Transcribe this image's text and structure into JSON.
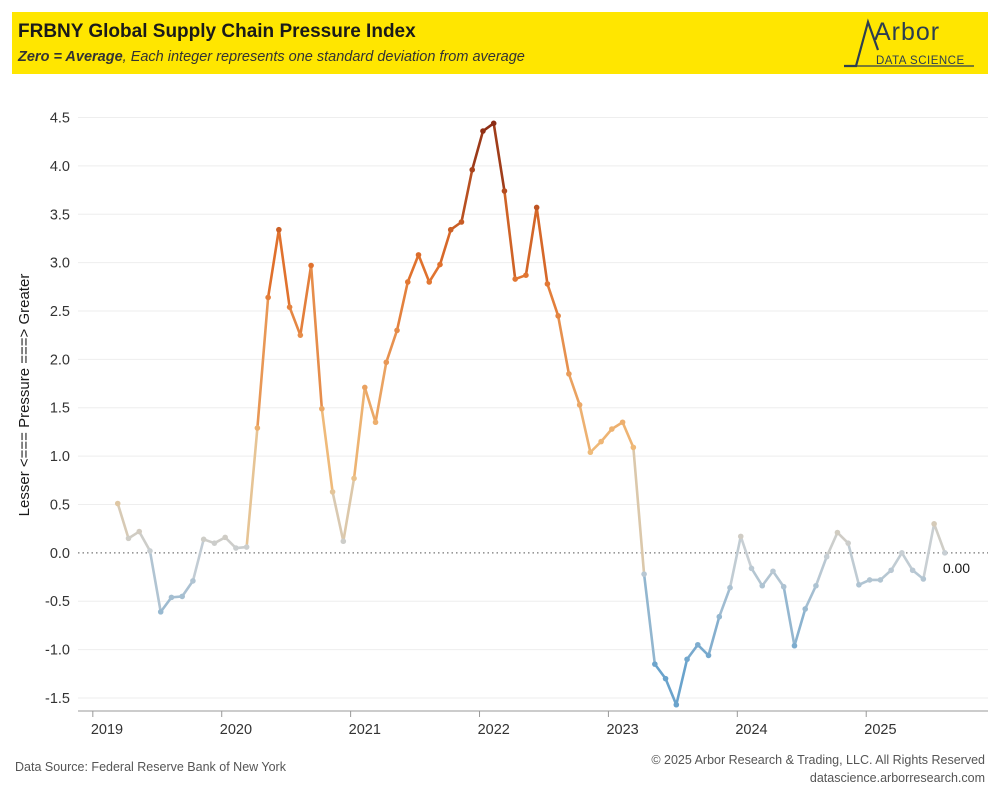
{
  "header": {
    "title": "FRBNY Global Supply Chain Pressure Index",
    "subtitle_emphasis": "Zero = Average",
    "subtitle_rest": ", Each integer represents one standard deviation from average",
    "logo_word": "Arbor",
    "logo_sub": "DATA SCIENCE"
  },
  "footer": {
    "source": "Data Source: Federal Reserve Bank of New York",
    "copyright": "© 2025 Arbor Research & Trading, LLC. All Rights Reserved",
    "website": "datascience.arborresearch.com"
  },
  "colors": {
    "banner": "#ffe600",
    "high": "#8b2c14",
    "mid_high": "#e0702c",
    "low_positive": "#f0c080",
    "neutral": "#c8cfd4",
    "negative": "#6aa3cc"
  },
  "chart_data": {
    "type": "line",
    "title": "FRBNY Global Supply Chain Pressure Index",
    "ylabel": "Lesser <=== Pressure ===> Greater",
    "xlabel": "",
    "ylim": [
      -1.8,
      4.65
    ],
    "yticks": [
      "4.5",
      "4.0",
      "3.5",
      "3.0",
      "2.5",
      "2.0",
      "1.5",
      "1.0",
      "0.5",
      "0.0",
      "-0.5",
      "-1.0",
      "-1.5"
    ],
    "ytick_values": [
      4.5,
      4.0,
      3.5,
      3.0,
      2.5,
      2.0,
      1.5,
      1.0,
      0.5,
      0.0,
      -0.5,
      -1.0,
      -1.5
    ],
    "xticks": [
      "2019",
      "2020",
      "2021",
      "2022",
      "2023",
      "2024",
      "2025"
    ],
    "reference_line": 0.0,
    "grid": true,
    "last_value_label": "0.00",
    "series": [
      {
        "start": "2019-02",
        "frequency": "monthly",
        "values": [
          0.51,
          0.15,
          0.22,
          0.02,
          -0.61,
          -0.46,
          -0.45,
          -0.29,
          0.14,
          0.1,
          0.16,
          0.05,
          0.06,
          1.29,
          2.64,
          3.34,
          2.54,
          2.25,
          2.97,
          1.49,
          0.63,
          0.12,
          0.77,
          1.71,
          1.35,
          1.97,
          2.3,
          2.8,
          3.08,
          2.8,
          2.98,
          3.34,
          3.42,
          3.96,
          4.36,
          4.44,
          3.74,
          2.83,
          2.87,
          3.57,
          2.78,
          2.45,
          1.85,
          1.53,
          1.04,
          1.15,
          1.28,
          1.35,
          1.09,
          -0.22,
          -1.15,
          -1.3,
          -1.57,
          -1.1,
          -0.95,
          -1.06,
          -0.66,
          -0.36,
          0.17,
          -0.16,
          -0.34,
          -0.19,
          -0.35,
          -0.96,
          -0.58,
          -0.34,
          -0.04,
          0.21,
          0.1,
          -0.33,
          -0.28,
          -0.28,
          -0.18,
          0.0,
          -0.18,
          -0.27,
          0.3,
          0.0
        ]
      }
    ]
  }
}
